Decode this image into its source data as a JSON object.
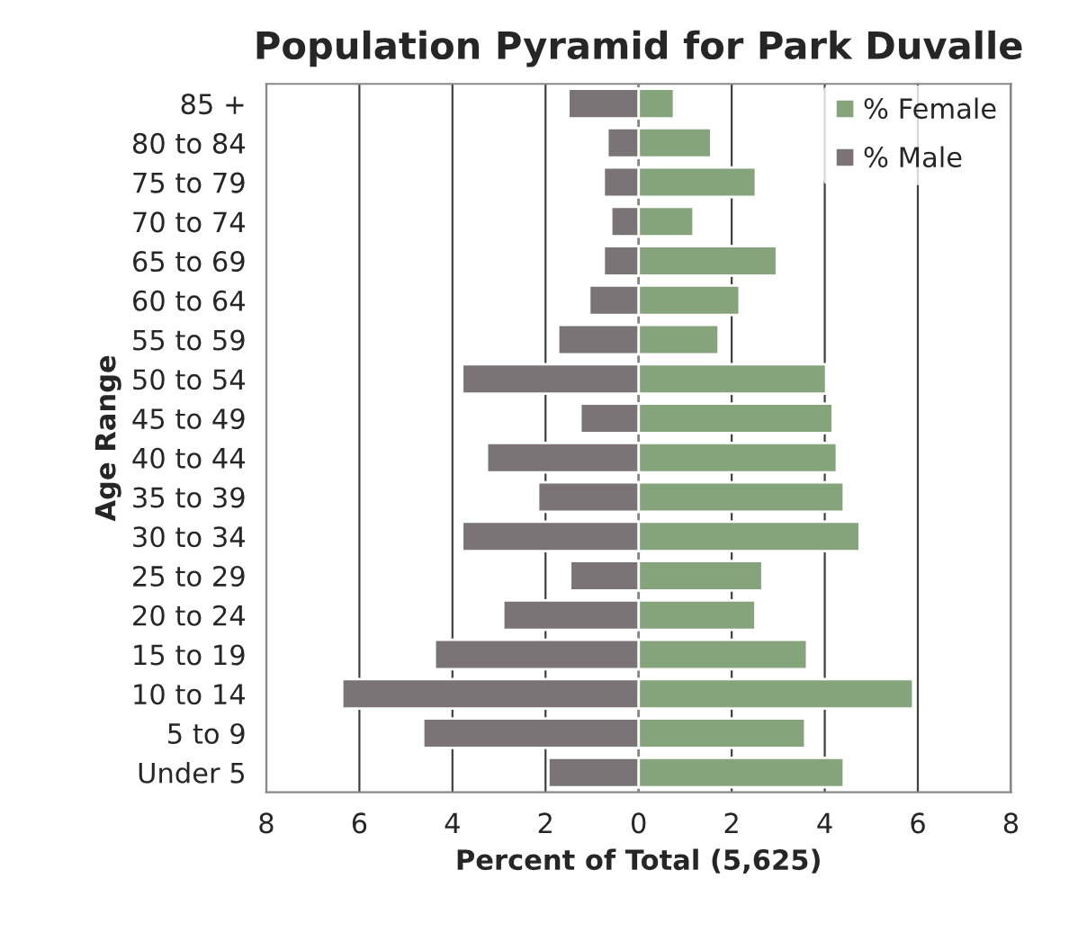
{
  "chart_data": {
    "type": "bar",
    "orientation": "horizontal",
    "title": "Population Pyramid for Park Duvalle",
    "xlabel": "Percent of Total (5,625)",
    "ylabel": "Age Range",
    "categories": [
      "85 +",
      "80 to 84",
      "75 to 79",
      "70 to 74",
      "65 to 69",
      "60 to 64",
      "55 to 59",
      "50 to 54",
      "45 to 49",
      "40 to 44",
      "35 to 39",
      "30 to 34",
      "25 to 29",
      "20 to 24",
      "15 to 19",
      "10 to 14",
      "5 to 9",
      "Under 5"
    ],
    "series": [
      {
        "name": "% Female",
        "color": "#86a47c",
        "values": [
          0.76,
          1.56,
          2.52,
          1.18,
          2.97,
          2.17,
          1.72,
          4.03,
          4.17,
          4.26,
          4.41,
          4.75,
          2.66,
          2.51,
          3.62,
          5.9,
          3.58,
          4.41
        ]
      },
      {
        "name": "% Male",
        "color": "#7a7476",
        "values": [
          -1.51,
          -0.67,
          -0.75,
          -0.59,
          -0.75,
          -1.06,
          -1.73,
          -3.79,
          -1.25,
          -3.26,
          -2.16,
          -3.79,
          -1.47,
          -2.91,
          -4.38,
          -6.37,
          -4.63,
          -1.94
        ]
      }
    ],
    "xlim": [
      -8,
      8
    ],
    "xticks": [
      {
        "value": -8,
        "label": "8"
      },
      {
        "value": -6,
        "label": "6"
      },
      {
        "value": -4,
        "label": "4"
      },
      {
        "value": -2,
        "label": "2"
      },
      0,
      2,
      4,
      6,
      8
    ],
    "grid": "x",
    "legend": "top right",
    "stacked": true
  }
}
